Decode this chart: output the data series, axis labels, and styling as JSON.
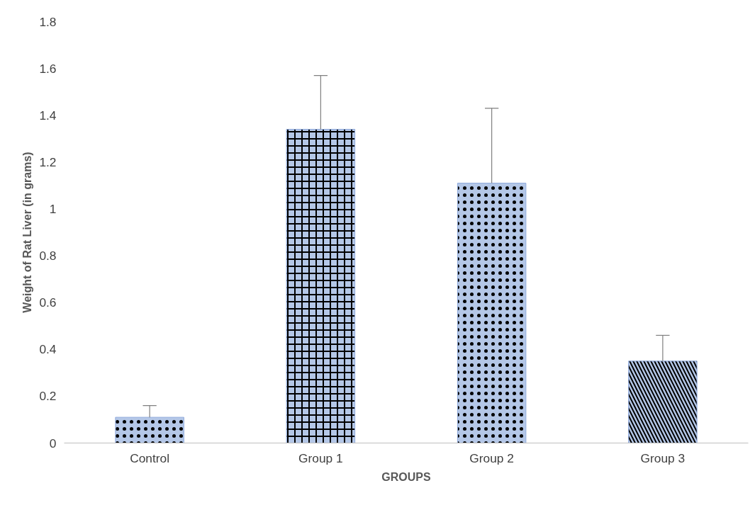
{
  "chart_data": {
    "type": "bar",
    "xlabel": "GROUPS",
    "ylabel": "Weight of Rat Liver (in grams)",
    "categories": [
      "Control",
      "Group 1",
      "Group 2",
      "Group 3"
    ],
    "values": [
      0.11,
      1.34,
      1.11,
      0.35
    ],
    "colors": [
      "#b4c7e7",
      "#b4c7e7",
      "#b4c7e7",
      "#b4c7e7"
    ],
    "errors": [
      [
        0.11,
        0.16
      ],
      [
        1.34,
        1.57
      ],
      [
        1.11,
        1.43
      ],
      [
        0.35,
        0.46
      ]
    ],
    "ylim": [
      0,
      1.8
    ],
    "yticks": [
      0,
      0.2,
      0.4,
      0.6,
      0.8,
      1,
      1.2,
      1.4,
      1.6,
      1.8
    ],
    "grid": false
  }
}
